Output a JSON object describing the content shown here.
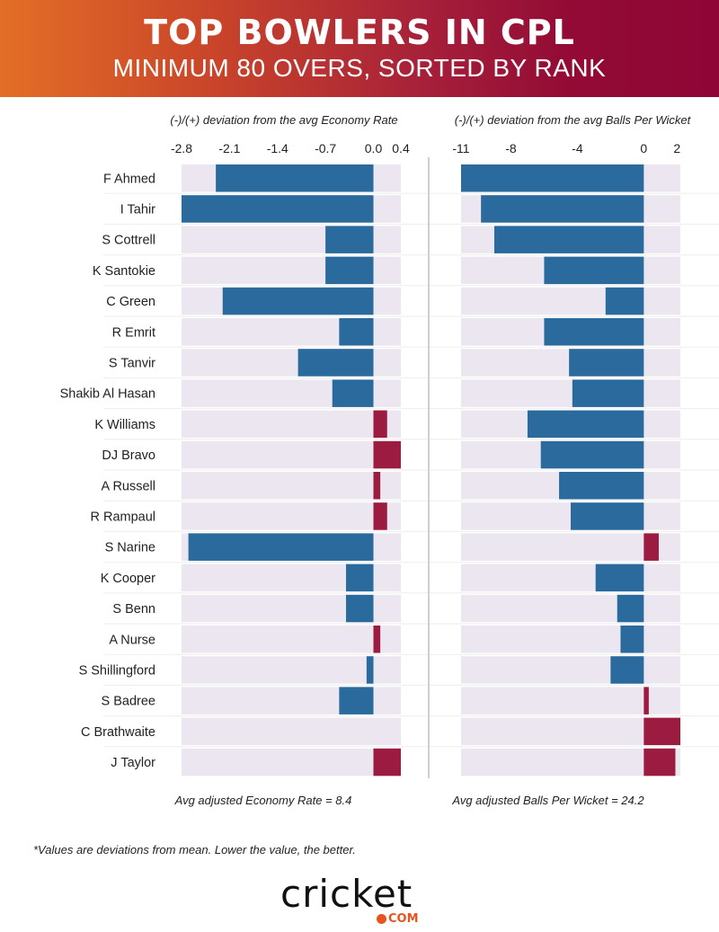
{
  "header": {
    "title": "TOP BOWLERS IN CPL",
    "subtitle": "MINIMUM 80 OVERS, SORTED BY RANK"
  },
  "chart_data": [
    {
      "type": "bar",
      "orientation": "horizontal",
      "title": "(-)/(+) deviation from the avg Economy Rate",
      "xlabel": "Avg adjusted Economy Rate = 8.4",
      "categories": [
        "F Ahmed",
        "I Tahir",
        "S Cottrell",
        "K Santokie",
        "C Green",
        "R Emrit",
        "S Tanvir",
        "Shakib Al Hasan",
        "K Williams",
        "DJ Bravo",
        "A Russell",
        "R Rampaul",
        "S Narine",
        "K Cooper",
        "S Benn",
        "A Nurse",
        "S Shillingford",
        "S Badree",
        "C Brathwaite",
        "J Taylor"
      ],
      "values": [
        -2.3,
        -2.8,
        -0.7,
        -0.7,
        -2.2,
        -0.5,
        -1.1,
        -0.6,
        0.2,
        0.4,
        0.1,
        0.2,
        -2.7,
        -0.4,
        -0.4,
        0.1,
        -0.1,
        -0.5,
        0.0,
        0.4
      ],
      "ticks": [
        "-2.8",
        "-2.1",
        "-1.4",
        "-0.7",
        "0.0",
        "0.4"
      ],
      "tick_values": [
        -2.8,
        -2.1,
        -1.4,
        -0.7,
        0.0,
        0.4
      ],
      "xlim": [
        -2.8,
        0.4
      ],
      "grid": false,
      "colors": {
        "negative": "#2a6a9c",
        "positive": "#9b1c40",
        "band": "#ebe6f0"
      }
    },
    {
      "type": "bar",
      "orientation": "horizontal",
      "title": "(-)/(+) deviation from the avg Balls Per Wicket",
      "xlabel": "Avg adjusted Balls Per Wicket = 24.2",
      "categories": [
        "F Ahmed",
        "I Tahir",
        "S Cottrell",
        "K Santokie",
        "C Green",
        "R Emrit",
        "S Tanvir",
        "Shakib Al Hasan",
        "K Williams",
        "DJ Bravo",
        "A Russell",
        "R Rampaul",
        "S Narine",
        "K Cooper",
        "S Benn",
        "A Nurse",
        "S Shillingford",
        "S Badree",
        "C Brathwaite",
        "J Taylor"
      ],
      "values": [
        -11.0,
        -9.8,
        -9.0,
        -6.0,
        -2.3,
        -6.0,
        -4.5,
        -4.3,
        -7.0,
        -6.2,
        -5.1,
        -4.4,
        0.9,
        -2.9,
        -1.6,
        -1.4,
        -2.0,
        0.3,
        2.2,
        1.9
      ],
      "ticks": [
        "-11",
        "-8",
        "-4",
        "0",
        "2"
      ],
      "tick_values": [
        -11,
        -8,
        -4,
        0,
        2
      ],
      "xlim": [
        -11,
        2.2
      ],
      "grid": false,
      "colors": {
        "negative": "#2a6a9c",
        "positive": "#9b1c40",
        "band": "#ebe6f0"
      }
    }
  ],
  "footnote": "*Values are deviations from mean. Lower the value, the better.",
  "logo": {
    "word": "cricket",
    "suffix": "COM"
  }
}
